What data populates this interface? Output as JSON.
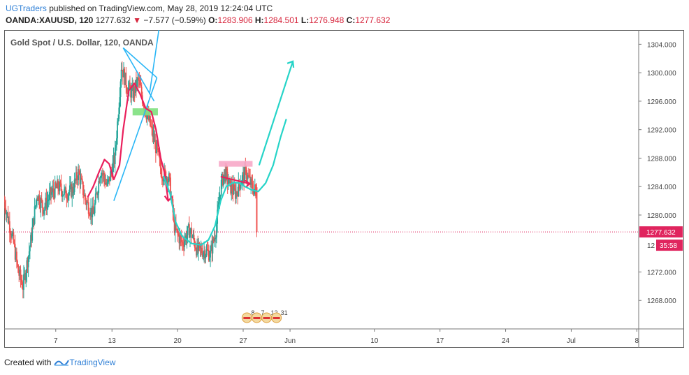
{
  "header": {
    "user": "UGTraders",
    "published_text": " published on TradingView.com, May 28, 2019 12:24:04 UTC",
    "symbol": "OANDA:XAUUSD, 120",
    "price": "1277.632",
    "change": "−7.577 (−0.59%)",
    "o_label": "O:",
    "o_value": "1283.906",
    "h_label": "H:",
    "h_value": "1284.501",
    "l_label": "L:",
    "l_value": "1276.948",
    "c_label": "C:",
    "c_value": "1277.632"
  },
  "footer": {
    "created_with": "Created with",
    "brand": "TradingView"
  },
  "colors": {
    "up": "#26a69a",
    "down": "#ef5350",
    "cyan": "#26d4c8",
    "blue": "#29b6f6",
    "pink": "#ea1f5c",
    "green": "#7ee07e",
    "pink_box": "#f7a8c8",
    "last_price_bg": "#e0245e"
  },
  "chart_data": {
    "type": "candlestick",
    "title": "Gold Spot / U.S. Dollar, 120, OANDA",
    "ylim": [
      1264.0,
      1306.0
    ],
    "y_ticks": [
      "1304.000",
      "1300.000",
      "1296.000",
      "1292.000",
      "1288.000",
      "1284.000",
      "1280.000",
      "1272.000",
      "1268.000"
    ],
    "x_ticks": [
      {
        "label": "7",
        "day": 7
      },
      {
        "label": "13",
        "day": 13
      },
      {
        "label": "20",
        "day": 20
      },
      {
        "label": "27",
        "day": 27
      },
      {
        "label": "Jun",
        "day": 32
      },
      {
        "label": "10",
        "day": 41
      },
      {
        "label": "17",
        "day": 48
      },
      {
        "label": "24",
        "day": 55
      },
      {
        "label": "Jul",
        "day": 62
      },
      {
        "label": "8",
        "day": 69
      }
    ],
    "x_range_days": [
      1.5,
      69.2
    ],
    "last_price": "1277.632",
    "countdown": "35:58",
    "event_labels": [
      "8",
      "7",
      "12",
      "31"
    ],
    "ohlc_path": [
      [
        1.5,
        1282
      ],
      [
        2.5,
        1276
      ],
      [
        3.0,
        1272
      ],
      [
        3.5,
        1270
      ],
      [
        4.3,
        1276
      ],
      [
        5.0,
        1283
      ],
      [
        5.7,
        1281
      ],
      [
        6.5,
        1283
      ],
      [
        7.3,
        1284
      ],
      [
        8.0,
        1283
      ],
      [
        8.8,
        1283.5
      ],
      [
        9.4,
        1286
      ],
      [
        10.2,
        1282
      ],
      [
        11.0,
        1280
      ],
      [
        11.8,
        1286.5
      ],
      [
        12.5,
        1284
      ],
      [
        13.3,
        1288
      ],
      [
        13.7,
        1295
      ],
      [
        14.0,
        1301
      ],
      [
        14.6,
        1298
      ],
      [
        15.2,
        1297
      ],
      [
        15.8,
        1299
      ],
      [
        16.5,
        1295
      ],
      [
        17.0,
        1293
      ],
      [
        17.6,
        1290
      ],
      [
        18.3,
        1286
      ],
      [
        19.1,
        1285
      ],
      [
        19.7,
        1278
      ],
      [
        20.5,
        1276
      ],
      [
        21.3,
        1278
      ],
      [
        22.1,
        1275
      ],
      [
        22.9,
        1275
      ],
      [
        23.5,
        1274.5
      ],
      [
        24.1,
        1278
      ],
      [
        24.6,
        1284
      ],
      [
        25.0,
        1286
      ],
      [
        25.6,
        1284
      ],
      [
        26.2,
        1283
      ],
      [
        26.8,
        1285
      ],
      [
        27.3,
        1286
      ],
      [
        27.9,
        1284
      ],
      [
        28.3,
        1283.5
      ],
      [
        28.5,
        1277.6
      ]
    ],
    "annotations": {
      "blue_triangle_up": [
        [
          13.2,
          1282.0
        ],
        [
          17.8,
          1299.3
        ]
      ],
      "blue_triangle_top": [
        [
          14.2,
          1303.5
        ],
        [
          17.8,
          1299.3
        ]
      ],
      "blue_triangle_mid": [
        [
          14.2,
          1303.5
        ],
        [
          17.5,
          1296.0
        ]
      ],
      "blue_steep": [
        [
          17.0,
          1297.0
        ],
        [
          18.0,
          1306.0
        ]
      ],
      "green_box": {
        "x0": 15.2,
        "x1": 17.9,
        "y0": 1295.0,
        "y1": 1294.0
      },
      "pink_curve": [
        [
          10.4,
          1282.5
        ],
        [
          11.0,
          1284.0
        ],
        [
          11.6,
          1286.0
        ],
        [
          12.2,
          1287.8
        ],
        [
          12.7,
          1287.2
        ],
        [
          13.2,
          1285.0
        ],
        [
          13.8,
          1287.0
        ],
        [
          14.2,
          1292.0
        ],
        [
          14.8,
          1297.5
        ],
        [
          15.4,
          1298.5
        ],
        [
          16.0,
          1297.0
        ],
        [
          16.6,
          1295.0
        ],
        [
          17.2,
          1294.5
        ],
        [
          17.7,
          1292.0
        ],
        [
          18.2,
          1288.0
        ],
        [
          18.6,
          1286.0
        ],
        [
          19.0,
          1282.0
        ]
      ],
      "pink_box": {
        "x0": 24.4,
        "x1": 28.0,
        "y0": 1287.6,
        "y1": 1286.8
      },
      "pink_arrow": [
        [
          24.6,
          1285.4
        ],
        [
          27.7,
          1284.4
        ]
      ],
      "cyan_curve": [
        [
          18.5,
          1285.5
        ],
        [
          19.2,
          1283.0
        ],
        [
          19.8,
          1279.0
        ],
        [
          20.5,
          1277.0
        ],
        [
          21.5,
          1276.0
        ],
        [
          22.5,
          1275.8
        ],
        [
          23.3,
          1276.5
        ],
        [
          24.0,
          1278.5
        ],
        [
          24.6,
          1282.0
        ],
        [
          25.2,
          1284.0
        ],
        [
          26.0,
          1284.6
        ],
        [
          26.6,
          1284.5
        ],
        [
          27.2,
          1284.0
        ],
        [
          27.8,
          1283.6
        ],
        [
          28.6,
          1283.3
        ],
        [
          29.4,
          1284.5
        ],
        [
          30.2,
          1287.0
        ],
        [
          31.0,
          1291.0
        ],
        [
          31.6,
          1293.5
        ]
      ],
      "cyan_arrow": [
        [
          28.7,
          1287.0
        ],
        [
          32.3,
          1301.6
        ]
      ]
    }
  }
}
